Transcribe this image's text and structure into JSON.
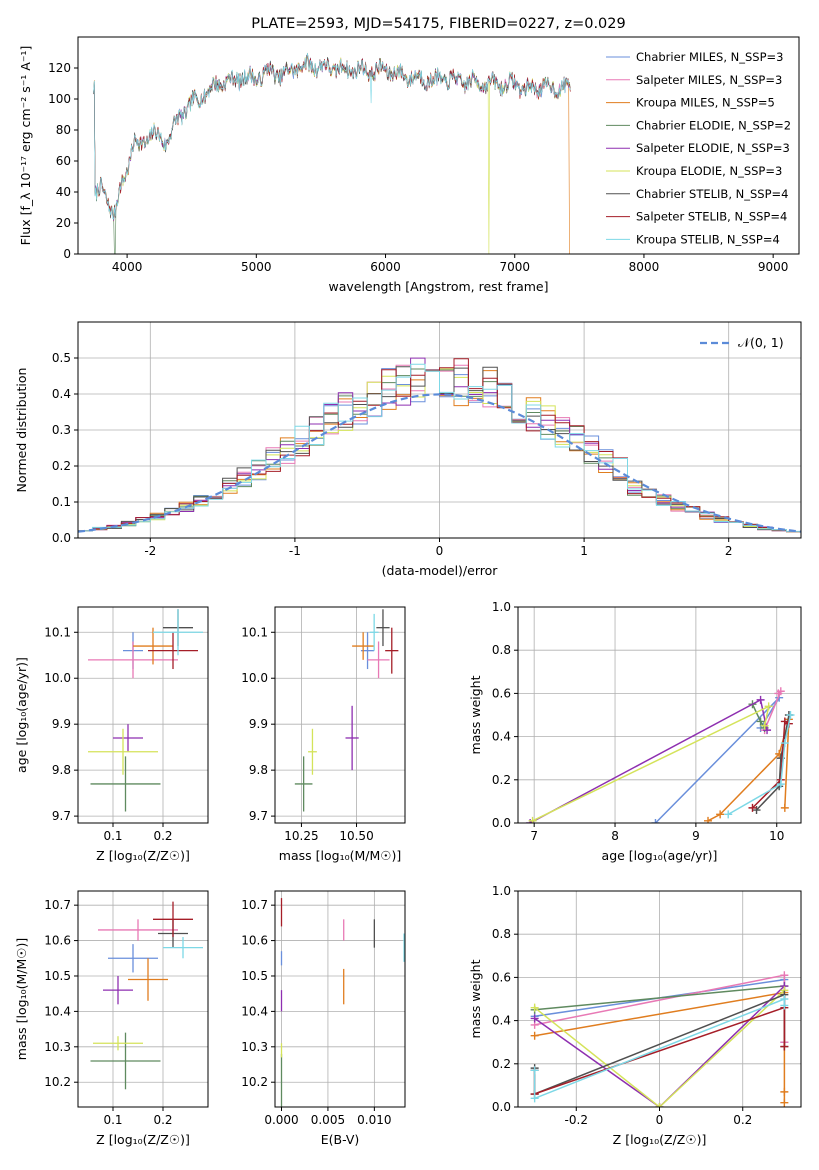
{
  "colors": [
    "#6a8fdb",
    "#e879b5",
    "#e07d1f",
    "#5f8a5f",
    "#8e2fb0",
    "#d4e35a",
    "#505050",
    "#a51e28",
    "#7dd8e6"
  ],
  "chart_data": [
    {
      "id": "spectrum",
      "type": "line",
      "title": "PLATE=2593, MJD=54175, FIBERID=0227, z=0.029",
      "xlabel": "wavelength [Angstrom, rest frame]",
      "ylabel": "Flux [f_λ 10⁻¹⁷ erg cm⁻² s⁻¹ A⁻¹]",
      "xlim": [
        3620,
        9200
      ],
      "ylim": [
        0,
        140
      ],
      "xticks": [
        4000,
        5000,
        6000,
        7000,
        8000,
        9000
      ],
      "yticks": [
        0,
        20,
        40,
        60,
        80,
        100,
        120
      ],
      "legend_position": "top-right",
      "series": [
        {
          "name": "Chabrier MILES, N_SSP=3"
        },
        {
          "name": "Salpeter MILES, N_SSP=3"
        },
        {
          "name": "Kroupa MILES, N_SSP=5"
        },
        {
          "name": "Chabrier ELODIE, N_SSP=2"
        },
        {
          "name": "Salpeter ELODIE, N_SSP=3"
        },
        {
          "name": "Kroupa ELODIE, N_SSP=3"
        },
        {
          "name": "Chabrier STELIB, N_SSP=4"
        },
        {
          "name": "Salpeter STELIB, N_SSP=4"
        },
        {
          "name": "Kroupa STELIB, N_SSP=4"
        }
      ],
      "continuum_points": [
        [
          3750,
          38
        ],
        [
          3800,
          42
        ],
        [
          3850,
          35
        ],
        [
          3900,
          25
        ],
        [
          3950,
          42
        ],
        [
          4000,
          55
        ],
        [
          4050,
          72
        ],
        [
          4100,
          70
        ],
        [
          4200,
          78
        ],
        [
          4300,
          72
        ],
        [
          4400,
          88
        ],
        [
          4500,
          97
        ],
        [
          4600,
          103
        ],
        [
          4700,
          110
        ],
        [
          4800,
          112
        ],
        [
          4900,
          114
        ],
        [
          5000,
          113
        ],
        [
          5100,
          118
        ],
        [
          5200,
          115
        ],
        [
          5300,
          120
        ],
        [
          5400,
          122
        ],
        [
          5500,
          121
        ],
        [
          5600,
          120
        ],
        [
          5700,
          119
        ],
        [
          5800,
          119
        ],
        [
          5900,
          118
        ],
        [
          6000,
          119
        ],
        [
          6100,
          116
        ],
        [
          6200,
          114
        ],
        [
          6300,
          113
        ],
        [
          6400,
          112
        ],
        [
          6500,
          113
        ],
        [
          6600,
          111
        ],
        [
          6700,
          111
        ],
        [
          6800,
          110
        ],
        [
          6900,
          109
        ],
        [
          7000,
          110
        ],
        [
          7100,
          106
        ],
        [
          7200,
          108
        ],
        [
          7300,
          107
        ],
        [
          7400,
          108
        ]
      ]
    },
    {
      "id": "residuals",
      "type": "histogram",
      "xlabel": "(data-model)/error",
      "ylabel": "Normed distribution",
      "xlim": [
        -2.5,
        2.5
      ],
      "ylim": [
        0,
        0.6
      ],
      "xticks": [
        -2,
        -1,
        0,
        1,
        2
      ],
      "yticks": [
        0.0,
        0.1,
        0.2,
        0.3,
        0.4,
        0.5
      ],
      "grid": true,
      "legend_position": "top-right",
      "reference_label": "𝒩(0, 1)",
      "bin_width": 0.1
    },
    {
      "id": "age-vs-Z",
      "type": "errorbar",
      "xlabel": "Z [log₁₀(Z/Z☉)]",
      "ylabel": "age  [log₁₀(age/yr)]",
      "xlim": [
        0.03,
        0.29
      ],
      "ylim": [
        9.685,
        10.155
      ],
      "xticks": [
        0.1,
        0.2
      ],
      "yticks": [
        9.7,
        9.8,
        9.9,
        10.0,
        10.1
      ],
      "grid": true,
      "points": [
        {
          "x": 0.14,
          "xerr": 0.02,
          "y": 10.06,
          "yerr": 0.04
        },
        {
          "x": 0.14,
          "xerr": 0.09,
          "y": 10.04,
          "yerr": 0.04
        },
        {
          "x": 0.18,
          "xerr": 0.04,
          "y": 10.07,
          "yerr": 0.04
        },
        {
          "x": 0.125,
          "xerr": 0.07,
          "y": 9.77,
          "yerr": 0.06
        },
        {
          "x": 0.13,
          "xerr": 0.03,
          "y": 9.87,
          "yerr": 0.03
        },
        {
          "x": 0.12,
          "xerr": 0.07,
          "y": 9.84,
          "yerr": 0.05
        },
        {
          "x": 0.23,
          "xerr": 0.03,
          "y": 10.11,
          "yerr": 0.04
        },
        {
          "x": 0.22,
          "xerr": 0.05,
          "y": 10.06,
          "yerr": 0.04
        },
        {
          "x": 0.23,
          "xerr": 0.05,
          "y": 10.1,
          "yerr": 0.05
        }
      ]
    },
    {
      "id": "age-vs-mass",
      "type": "errorbar",
      "xlabel": "mass [log₁₀(M/M☉)]",
      "xlim": [
        10.13,
        10.72
      ],
      "ylim": [
        9.685,
        10.155
      ],
      "xticks": [
        10.25,
        10.5
      ],
      "xticklabels": [
        "10.25",
        "10.50"
      ],
      "yticks": [
        9.7,
        9.8,
        9.9,
        10.0,
        10.1
      ],
      "grid": true,
      "points": [
        {
          "x": 10.55,
          "xerr": 0.03,
          "y": 10.06,
          "yerr": 0.04
        },
        {
          "x": 10.6,
          "xerr": 0.05,
          "y": 10.04,
          "yerr": 0.04
        },
        {
          "x": 10.53,
          "xerr": 0.05,
          "y": 10.07,
          "yerr": 0.03
        },
        {
          "x": 10.26,
          "xerr": 0.04,
          "y": 9.77,
          "yerr": 0.06
        },
        {
          "x": 10.48,
          "xerr": 0.03,
          "y": 9.87,
          "yerr": 0.07
        },
        {
          "x": 10.3,
          "xerr": 0.02,
          "y": 9.84,
          "yerr": 0.05
        },
        {
          "x": 10.62,
          "xerr": 0.03,
          "y": 10.11,
          "yerr": 0.04
        },
        {
          "x": 10.66,
          "xerr": 0.03,
          "y": 10.06,
          "yerr": 0.05
        },
        {
          "x": 10.58,
          "xerr": 0.02,
          "y": 10.1,
          "yerr": 0.04
        }
      ]
    },
    {
      "id": "mass-weight-vs-age",
      "type": "line",
      "xlabel": "age  [log₁₀(age/yr)]",
      "ylabel": "mass weight",
      "xlim": [
        6.8,
        10.3
      ],
      "ylim": [
        0,
        1
      ],
      "xticks": [
        7,
        8,
        9,
        10
      ],
      "yticks": [
        0.0,
        0.2,
        0.4,
        0.6,
        0.8,
        1.0
      ],
      "grid": true,
      "series": [
        {
          "x": [
            8.5,
            10.03,
            9.8
          ],
          "y": [
            0.0,
            0.58,
            0.44
          ]
        },
        {
          "x": [
            9.85,
            10.05,
            10.02
          ],
          "y": [
            0.43,
            0.61,
            0.6
          ]
        },
        {
          "x": [
            9.15,
            9.3,
            10.03,
            10.15,
            10.1
          ],
          "y": [
            0.01,
            0.04,
            0.32,
            0.48,
            0.07
          ]
        },
        {
          "x": [
            9.7,
            9.8,
            9.85
          ],
          "y": [
            0.55,
            0.47,
            0.44
          ]
        },
        {
          "x": [
            6.95,
            9.8,
            9.88
          ],
          "y": [
            0.0,
            0.57,
            0.43
          ]
        },
        {
          "x": [
            6.98,
            9.9,
            9.85
          ],
          "y": [
            0.01,
            0.54,
            0.45
          ]
        },
        {
          "x": [
            9.75,
            10.03,
            10.05,
            10.15
          ],
          "y": [
            0.06,
            0.17,
            0.3,
            0.5
          ]
        },
        {
          "x": [
            9.7,
            10.05,
            10.1,
            10.15
          ],
          "y": [
            0.07,
            0.2,
            0.47,
            0.46
          ]
        },
        {
          "x": [
            9.4,
            10.05,
            10.1,
            10.17
          ],
          "y": [
            0.04,
            0.18,
            0.37,
            0.5
          ]
        }
      ]
    },
    {
      "id": "mass-vs-Z",
      "type": "errorbar",
      "xlabel": "Z [log₁₀(Z/Z☉)]",
      "ylabel": "mass [log₁₀(M/M☉)]",
      "xlim": [
        0.03,
        0.29
      ],
      "ylim": [
        10.13,
        10.74
      ],
      "xticks": [
        0.1,
        0.2
      ],
      "yticks": [
        10.2,
        10.3,
        10.4,
        10.5,
        10.6,
        10.7
      ],
      "grid": true,
      "points": [
        {
          "x": 0.14,
          "xerr": 0.05,
          "y": 10.55,
          "yerr": 0.04
        },
        {
          "x": 0.15,
          "xerr": 0.08,
          "y": 10.63,
          "yerr": 0.03
        },
        {
          "x": 0.17,
          "xerr": 0.04,
          "y": 10.49,
          "yerr": 0.06
        },
        {
          "x": 0.125,
          "xerr": 0.07,
          "y": 10.26,
          "yerr": 0.08
        },
        {
          "x": 0.11,
          "xerr": 0.03,
          "y": 10.46,
          "yerr": 0.04
        },
        {
          "x": 0.11,
          "xerr": 0.05,
          "y": 10.31,
          "yerr": 0.02
        },
        {
          "x": 0.22,
          "xerr": 0.03,
          "y": 10.62,
          "yerr": 0.04
        },
        {
          "x": 0.22,
          "xerr": 0.04,
          "y": 10.66,
          "yerr": 0.05
        },
        {
          "x": 0.24,
          "xerr": 0.04,
          "y": 10.58,
          "yerr": 0.03
        }
      ]
    },
    {
      "id": "mass-vs-ebv",
      "type": "errorbar",
      "xlabel": "E(B-V)",
      "xlim": [
        -0.0007,
        0.0133
      ],
      "ylim": [
        10.13,
        10.74
      ],
      "xticks": [
        0.0,
        0.005,
        0.01
      ],
      "xticklabels": [
        "0.000",
        "0.005",
        "0.010"
      ],
      "yticks": [
        10.2,
        10.3,
        10.4,
        10.5,
        10.6,
        10.7
      ],
      "grid": true,
      "points": [
        {
          "x": 0.0,
          "xerr": 0,
          "y": 10.55,
          "yerr": 0.02
        },
        {
          "x": 0.0067,
          "xerr": 0,
          "y": 10.63,
          "yerr": 0.03
        },
        {
          "x": 0.0067,
          "xerr": 0,
          "y": 10.47,
          "yerr": 0.05
        },
        {
          "x": 0.0,
          "xerr": 0,
          "y": 10.2,
          "yerr": 0.08
        },
        {
          "x": 0.0,
          "xerr": 0,
          "y": 10.43,
          "yerr": 0.03
        },
        {
          "x": 0.0,
          "xerr": 0,
          "y": 10.29,
          "yerr": 0.02
        },
        {
          "x": 0.01,
          "xerr": 0,
          "y": 10.62,
          "yerr": 0.04
        },
        {
          "x": 0.0,
          "xerr": 0,
          "y": 10.68,
          "yerr": 0.04
        },
        {
          "x": 0.0132,
          "xerr": 0,
          "y": 10.58,
          "yerr": 0.04
        }
      ]
    },
    {
      "id": "mass-weight-vs-Z",
      "type": "line",
      "xlabel": "Z [log₁₀(Z/Z☉)]",
      "ylabel": "mass weight",
      "xlim": [
        -0.34,
        0.34
      ],
      "ylim": [
        0,
        1
      ],
      "xticks": [
        -0.2,
        0.0,
        0.2
      ],
      "yticks": [
        0.0,
        0.2,
        0.4,
        0.6,
        0.8,
        1.0
      ],
      "grid": true,
      "series": [
        {
          "x": [
            -0.3,
            0.3,
            0.3
          ],
          "y": [
            0.42,
            0.59,
            0.3
          ]
        },
        {
          "x": [
            -0.3,
            0.3,
            0.3
          ],
          "y": [
            0.38,
            0.61,
            0.3
          ]
        },
        {
          "x": [
            -0.3,
            0.3,
            0.3,
            0.3
          ],
          "y": [
            0.33,
            0.53,
            0.07,
            0.02
          ]
        },
        {
          "x": [
            -0.3,
            0.3
          ],
          "y": [
            0.45,
            0.56
          ]
        },
        {
          "x": [
            -0.3,
            0.0,
            0.3
          ],
          "y": [
            0.41,
            0.0,
            0.56
          ]
        },
        {
          "x": [
            -0.3,
            0.0,
            0.3
          ],
          "y": [
            0.46,
            0.0,
            0.54
          ]
        },
        {
          "x": [
            -0.3,
            -0.3,
            0.3,
            0.3
          ],
          "y": [
            0.18,
            0.06,
            0.52,
            0.28
          ]
        },
        {
          "x": [
            -0.3,
            -0.3,
            0.3,
            0.3
          ],
          "y": [
            0.17,
            0.06,
            0.46,
            0.28
          ]
        },
        {
          "x": [
            -0.3,
            -0.3,
            0.3,
            0.3
          ],
          "y": [
            0.17,
            0.04,
            0.5,
            0.47
          ]
        }
      ]
    }
  ]
}
